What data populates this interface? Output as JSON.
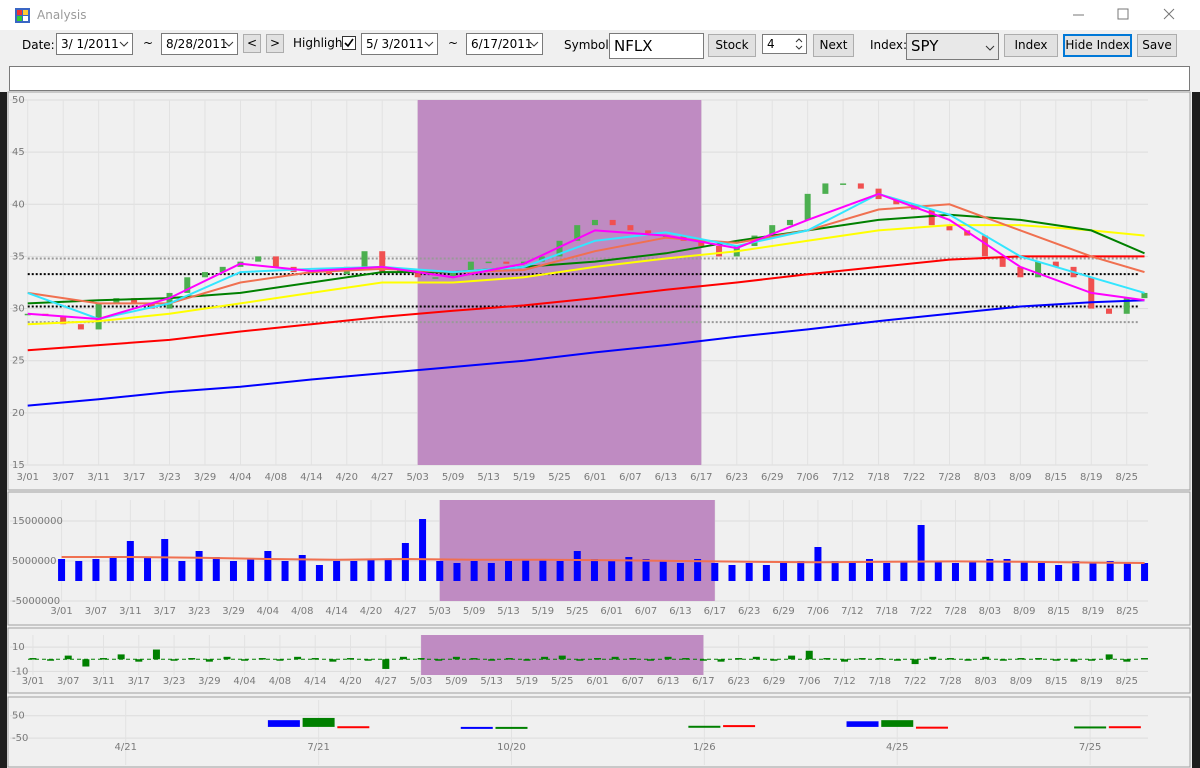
{
  "window": {
    "title": "Analysis"
  },
  "toolbar": {
    "date_label": "Date:",
    "date_from": "3/ 1/2011",
    "range_sep": "~",
    "date_to": "8/28/2011",
    "prev": "<",
    "next_arrow": ">",
    "highlight_label": "Highlight",
    "highlight_checked": true,
    "highlight_from": "5/ 3/2011",
    "highlight_to": "6/17/2011",
    "symbol_label": "Symbol:",
    "symbol": "NFLX",
    "stock_button": "Stock",
    "step": "4",
    "next_button": "Next",
    "index_label": "Index:",
    "index": "SPY",
    "index_button": "Index",
    "hide_index_button": "Hide Index",
    "save_button": "Save"
  },
  "chart_data": [
    {
      "type": "candlestick",
      "xlim": [
        -0.5,
        31.6
      ],
      "ylim": [
        15,
        50
      ],
      "yticks": [
        15,
        20,
        25,
        30,
        35,
        40,
        45,
        50
      ],
      "grid": true,
      "categories": [
        "3/01",
        "3/07",
        "3/11",
        "3/17",
        "3/23",
        "3/29",
        "4/04",
        "4/08",
        "4/14",
        "4/20",
        "4/27",
        "5/03",
        "5/09",
        "5/13",
        "5/19",
        "5/25",
        "6/01",
        "6/07",
        "6/13",
        "6/17",
        "6/23",
        "6/29",
        "7/06",
        "7/12",
        "7/18",
        "7/22",
        "7/28",
        "8/03",
        "8/09",
        "8/15",
        "8/19",
        "8/25"
      ],
      "highlight": [
        11,
        19
      ],
      "highlight_color": "#bf8bc2",
      "levels": [
        {
          "value": 34.8,
          "color": "#999999"
        },
        {
          "value": 33.3,
          "color": "#000000"
        },
        {
          "value": 30.2,
          "color": "#000000"
        },
        {
          "value": 28.7,
          "color": "#999999"
        }
      ],
      "candles": {
        "up_color": "#4caf50",
        "down_color": "#f05050",
        "x": [
          0,
          0.5,
          1,
          1.5,
          2,
          2.5,
          3,
          3.5,
          4,
          4.5,
          5,
          5.5,
          6,
          6.5,
          7,
          7.5,
          8,
          8.5,
          9,
          9.5,
          10,
          10.5,
          11,
          11.5,
          12,
          12.5,
          13,
          13.5,
          14,
          14.5,
          15,
          15.5,
          16,
          16.5,
          17,
          17.5,
          18,
          18.5,
          19,
          19.5,
          20,
          20.5,
          21,
          21.5,
          22,
          22.5,
          23,
          23.5,
          24,
          24.5,
          25,
          25.5,
          26,
          26.5,
          27,
          27.5,
          28,
          28.5,
          29,
          29.5,
          30,
          30.5,
          31,
          31.5
        ],
        "values": [
          29.5,
          29.3,
          28.5,
          28,
          30.5,
          31,
          30.5,
          30,
          31.5,
          33,
          33.5,
          34,
          34.5,
          35,
          34,
          33.5,
          33.5,
          33.3,
          34,
          35.5,
          33.5,
          33.8,
          33,
          33,
          33.5,
          34.5,
          34.5,
          34.3,
          34.5,
          35,
          36.5,
          38,
          38.5,
          38,
          37.5,
          37,
          37,
          36.5,
          36,
          35,
          36,
          37,
          38,
          38.5,
          41,
          42,
          42,
          41.5,
          40.5,
          40,
          39.5,
          38,
          37.5,
          37,
          35,
          34,
          33,
          34.5,
          34,
          33,
          30,
          29.5,
          31,
          31.5
        ]
      },
      "series": [
        {
          "color": "#0000ff",
          "x": [
            0,
            2,
            4,
            6,
            8,
            10,
            12,
            14,
            16,
            18,
            20,
            22,
            24,
            26,
            28,
            30,
            31.5
          ],
          "values": [
            20.7,
            21.3,
            22,
            22.5,
            23.2,
            23.8,
            24.4,
            25,
            25.8,
            26.5,
            27.3,
            28,
            28.8,
            29.5,
            30.2,
            30.6,
            30.8
          ]
        },
        {
          "color": "#ff0000",
          "x": [
            0,
            2,
            4,
            6,
            8,
            10,
            12,
            14,
            16,
            18,
            20,
            22,
            24,
            26,
            28,
            30,
            31.5
          ],
          "values": [
            26,
            26.5,
            27,
            27.8,
            28.5,
            29.2,
            29.8,
            30.3,
            31,
            31.8,
            32.5,
            33.3,
            34,
            34.7,
            35,
            35,
            35
          ]
        },
        {
          "color": "#ffff00",
          "x": [
            0,
            2,
            4,
            6,
            8,
            10,
            12,
            14,
            16,
            18,
            20,
            22,
            24,
            26,
            28,
            30,
            31.5
          ],
          "values": [
            28.5,
            28.8,
            29.5,
            30.5,
            31.5,
            32.5,
            32.5,
            33,
            34,
            34.8,
            35.5,
            36.5,
            37.5,
            38,
            38,
            37.5,
            37
          ]
        },
        {
          "color": "#008000",
          "x": [
            0,
            2,
            4,
            6,
            8,
            10,
            12,
            14,
            16,
            18,
            20,
            22,
            24,
            26,
            28,
            30,
            31.5
          ],
          "values": [
            30.5,
            30.8,
            31,
            31.5,
            32.5,
            33.5,
            33.5,
            34,
            34.5,
            35.3,
            36.5,
            37.5,
            38.5,
            39,
            38.5,
            37.5,
            35.3
          ]
        },
        {
          "color": "#f07050",
          "x": [
            0,
            2,
            4,
            6,
            8,
            10,
            12,
            14,
            16,
            18,
            20,
            22,
            24,
            26,
            28,
            30,
            31.5
          ],
          "values": [
            31.5,
            30.5,
            30.5,
            32.5,
            33.5,
            33.8,
            33.5,
            33.7,
            35.5,
            36.8,
            36.3,
            37.5,
            39.5,
            40,
            37.5,
            35,
            33.5
          ]
        },
        {
          "color": "#33e6ff",
          "x": [
            0,
            2,
            4,
            6,
            8,
            10,
            12,
            14,
            16,
            18,
            20,
            22,
            24,
            26,
            28,
            30,
            31.5
          ],
          "values": [
            31.5,
            29,
            30.5,
            33.5,
            33.8,
            34,
            33.5,
            34,
            36.5,
            37.3,
            36,
            37.5,
            41,
            39,
            35,
            33,
            31.5
          ]
        },
        {
          "color": "#ff00ff",
          "x": [
            0,
            2,
            4,
            6,
            8,
            10,
            12,
            14,
            16,
            18,
            20,
            22,
            24,
            26,
            28,
            30,
            31.5
          ],
          "values": [
            29.5,
            29,
            31,
            34.3,
            33.6,
            34,
            33,
            34.3,
            37.5,
            37,
            35.8,
            38.5,
            41,
            38.5,
            34,
            31.5,
            30.8
          ]
        }
      ]
    },
    {
      "type": "bar",
      "xlim": [
        -1.5,
        31.6
      ],
      "ylim": [
        -5000000,
        20250000
      ],
      "yticks": [
        -5000000,
        5000000,
        15000000
      ],
      "grid": true,
      "color": "#0000ff",
      "categories": [
        "3/01",
        "3/07",
        "3/11",
        "3/17",
        "3/23",
        "3/29",
        "4/04",
        "4/08",
        "4/14",
        "4/20",
        "4/27",
        "5/03",
        "5/09",
        "5/13",
        "5/19",
        "5/25",
        "6/01",
        "6/07",
        "6/13",
        "6/17",
        "6/23",
        "6/29",
        "7/06",
        "7/12",
        "7/18",
        "7/22",
        "7/28",
        "8/03",
        "8/09",
        "8/15",
        "8/19",
        "8/25"
      ],
      "highlight": [
        11,
        19
      ],
      "highlight_color": "#bf8bc2",
      "x": [
        0,
        0.5,
        1,
        1.5,
        2,
        2.5,
        3,
        3.5,
        4,
        4.5,
        5,
        5.5,
        6,
        6.5,
        7,
        7.5,
        8,
        8.5,
        9,
        9.5,
        10,
        10.5,
        11,
        11.5,
        12,
        12.5,
        13,
        13.5,
        14,
        14.5,
        15,
        15.5,
        16,
        16.5,
        17,
        17.5,
        18,
        18.5,
        19,
        19.5,
        20,
        20.5,
        21,
        21.5,
        22,
        22.5,
        23,
        23.5,
        24,
        24.5,
        25,
        25.5,
        26,
        26.5,
        27,
        27.5,
        28,
        28.5,
        29,
        29.5,
        30,
        30.5,
        31,
        31.5
      ],
      "values": [
        5500000,
        5000000,
        5500000,
        6000000,
        10000000,
        6000000,
        10500000,
        5000000,
        7500000,
        6000000,
        5000000,
        5500000,
        7500000,
        5000000,
        6500000,
        4000000,
        5000000,
        5000000,
        5500000,
        5500000,
        9500000,
        15500000,
        5000000,
        4500000,
        5000000,
        4500000,
        5000000,
        5500000,
        5500000,
        5000000,
        7500000,
        5500000,
        5000000,
        6000000,
        5500000,
        5000000,
        4500000,
        5500000,
        4500000,
        4000000,
        4500000,
        4000000,
        4500000,
        5000000,
        8500000,
        5000000,
        4500000,
        5500000,
        4500000,
        5000000,
        14000000,
        5000000,
        4500000,
        5000000,
        5500000,
        5500000,
        5000000,
        4500000,
        4000000,
        5000000,
        4500000,
        5000000,
        4500000,
        4500000
      ],
      "series": [
        {
          "color": "#f07050",
          "x": [
            0,
            2,
            4,
            6,
            8,
            10,
            12,
            14,
            16,
            18,
            20,
            22,
            24,
            26,
            28,
            30,
            31.5
          ],
          "values": [
            6000000,
            6000000,
            5800000,
            5500000,
            5300000,
            5500000,
            5300000,
            5300000,
            5200000,
            5000000,
            4800000,
            4700000,
            4800000,
            4900000,
            4800000,
            4600000,
            4500000
          ]
        }
      ]
    },
    {
      "type": "bar",
      "xlim": [
        -0.65,
        31.6
      ],
      "ylim": [
        -13,
        20
      ],
      "yticks": [
        -10,
        10
      ],
      "grid": true,
      "color": "#008000",
      "zero_line": "#008000",
      "categories": [
        "3/01",
        "3/07",
        "3/11",
        "3/17",
        "3/23",
        "3/29",
        "4/04",
        "4/08",
        "4/14",
        "4/20",
        "4/27",
        "5/03",
        "5/09",
        "5/13",
        "5/19",
        "5/25",
        "6/01",
        "6/07",
        "6/13",
        "6/17",
        "6/23",
        "6/29",
        "7/06",
        "7/12",
        "7/18",
        "7/22",
        "7/28",
        "8/03",
        "8/09",
        "8/15",
        "8/19",
        "8/25"
      ],
      "highlight": [
        11,
        19
      ],
      "highlight_color": "#bf8bc2",
      "x": [
        0,
        0.5,
        1,
        1.5,
        2,
        2.5,
        3,
        3.5,
        4,
        4.5,
        5,
        5.5,
        6,
        6.5,
        7,
        7.5,
        8,
        8.5,
        9,
        9.5,
        10,
        10.5,
        11,
        11.5,
        12,
        12.5,
        13,
        13.5,
        14,
        14.5,
        15,
        15.5,
        16,
        16.5,
        17,
        17.5,
        18,
        18.5,
        19,
        19.5,
        20,
        20.5,
        21,
        21.5,
        22,
        22.5,
        23,
        23.5,
        24,
        24.5,
        25,
        25.5,
        26,
        26.5,
        27,
        27.5,
        28,
        28.5,
        29,
        29.5,
        30,
        30.5,
        31,
        31.5
      ],
      "values": [
        1,
        -1,
        3,
        -6,
        1,
        4,
        -2,
        8,
        -1,
        1,
        -2,
        2,
        -1,
        1,
        -1,
        2,
        1,
        -2,
        1,
        -1,
        -8,
        2,
        1,
        -1,
        2,
        1,
        -1,
        1,
        -1,
        2,
        3,
        -1,
        1,
        2,
        1,
        -1,
        2,
        1,
        -1,
        -2,
        1,
        2,
        -1,
        3,
        7,
        1,
        -2,
        1,
        1,
        -1,
        -4,
        2,
        1,
        -1,
        2,
        -1,
        1,
        1,
        -1,
        -2,
        -1,
        4,
        -2,
        1
      ]
    },
    {
      "type": "bar",
      "xlim": [
        -0.6,
        5.3
      ],
      "ylim": [
        -170,
        120
      ],
      "yticks": [
        -50,
        50
      ],
      "grid": true,
      "categories": [
        "4/21",
        "7/21",
        "10/20",
        "1/26",
        "4/25",
        "7/25"
      ],
      "series": [
        {
          "color": "#0000ff",
          "values": [
            null,
            30,
            -2,
            null,
            25,
            null
          ]
        },
        {
          "color": "#008000",
          "values": [
            null,
            40,
            -2,
            5,
            30,
            2
          ]
        },
        {
          "color": "#ff0000",
          "values": [
            null,
            3,
            null,
            8,
            1,
            3
          ]
        }
      ]
    }
  ]
}
